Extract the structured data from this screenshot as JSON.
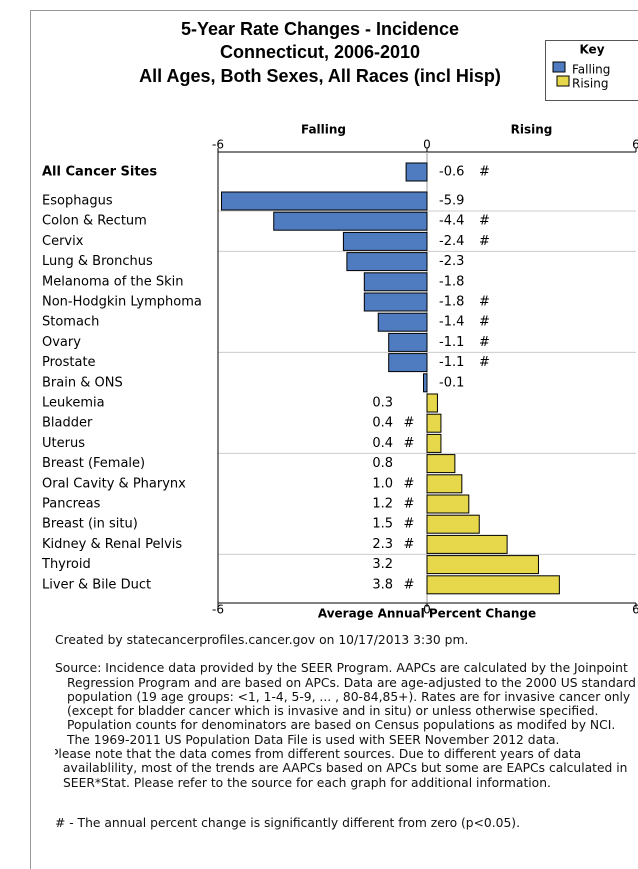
{
  "chart_data": {
    "type": "bar",
    "orientation": "horizontal",
    "title": [
      "5-Year Rate Changes - Incidence",
      "Connecticut, 2006-2010",
      "All Ages, Both Sexes, All Races (incl Hisp)"
    ],
    "x_label": "Average Annual Percent Change",
    "categories": [
      "All Cancer Sites",
      "Esophagus",
      "Colon & Rectum",
      "Cervix",
      "Lung & Bronchus",
      "Melanoma of the Skin",
      "Non-Hodgkin Lymphoma",
      "Stomach",
      "Ovary",
      "Prostate",
      "Brain & ONS",
      "Leukemia",
      "Bladder",
      "Uterus",
      "Breast (Female)",
      "Oral Cavity & Pharynx",
      "Pancreas",
      "Breast (in situ)",
      "Kidney & Renal Pelvis",
      "Thyroid",
      "Liver & Bile Duct"
    ],
    "values": [
      -0.6,
      -5.9,
      -4.4,
      -2.4,
      -2.3,
      -1.8,
      -1.8,
      -1.4,
      -1.1,
      -1.1,
      -0.1,
      0.3,
      0.4,
      0.4,
      0.8,
      1.0,
      1.2,
      1.5,
      2.3,
      3.2,
      3.8
    ],
    "value_labels": [
      "-0.6",
      "-5.9",
      "-4.4",
      "-2.4",
      "-2.3",
      "-1.8",
      "-1.8",
      "-1.4",
      "-1.1",
      "-1.1",
      "-0.1",
      "0.3",
      "0.4",
      "0.4",
      "0.8",
      "1.0",
      "1.2",
      "1.5",
      "2.3",
      "3.2",
      "3.8"
    ],
    "significant": [
      true,
      false,
      true,
      true,
      false,
      false,
      true,
      true,
      true,
      true,
      false,
      false,
      true,
      true,
      false,
      true,
      true,
      true,
      true,
      false,
      true
    ],
    "significance_marker": "#",
    "xlim": [
      -6,
      6
    ],
    "xticks": [
      -6,
      0,
      6
    ],
    "legend": {
      "title": "Key",
      "position": "top-right",
      "items": [
        {
          "name": "Falling",
          "color": "#4f7cc0"
        },
        {
          "name": "Rising",
          "color": "#e6d84a"
        }
      ]
    },
    "notes": {
      "created": "Created by statecancerprofiles.cancer.gov on 10/17/2013 3:30 pm.",
      "source": "Source: Incidence data provided by the SEER Program. AAPCs are calculated by the Joinpoint Regression Program and are based on APCs. Data are age-adjusted to the 2000 US standard population (19 age groups: <1, 1-4, 5-9, ... , 80-84,85+). Rates are for invasive cancer only (except for bladder cancer which is invasive and in situ) or unless otherwise specified. Population counts for denominators are based on Census populations as modifed by NCI. The 1969-2011 US Population Data File is used with SEER November 2012 data.",
      "caveat": "Please note that the data comes from different sources. Due to different years of data availablility, most of the trends are AAPCs based on APCs but some are EAPCs calculated in SEER*Stat. Please refer to the source for each graph for additional information.",
      "footnote": "# - The annual percent change is significantly different from zero (p<0.05)."
    }
  }
}
